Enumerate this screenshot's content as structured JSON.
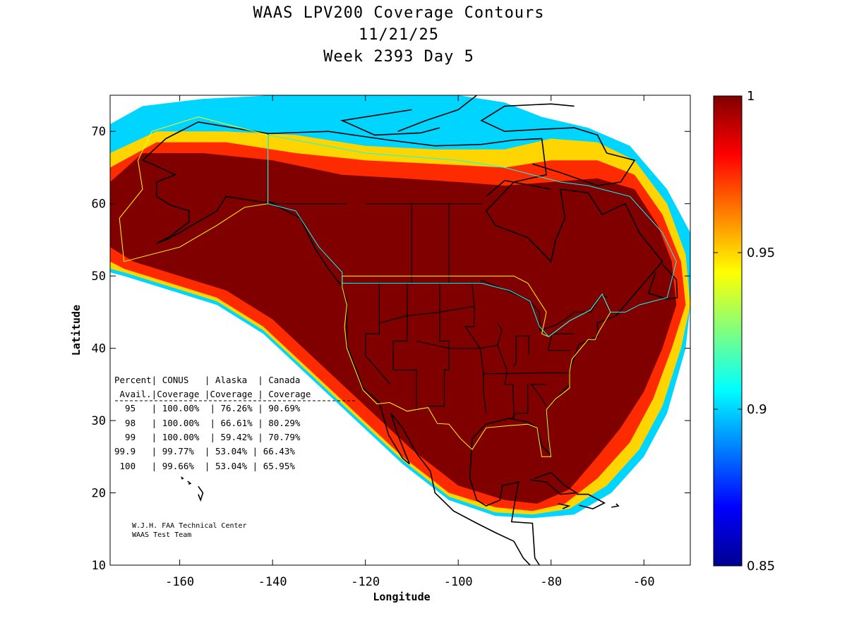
{
  "title": {
    "line1": "WAAS LPV200 Coverage Contours",
    "line2": "11/21/25",
    "line3": "Week 2393 Day 5"
  },
  "axes": {
    "xlabel": "Longitude",
    "ylabel": "Latitude",
    "xlim": [
      -175,
      -50
    ],
    "ylim": [
      10,
      75
    ],
    "x_ticks": [
      -160,
      -140,
      -120,
      -100,
      -80,
      -60
    ],
    "y_ticks": [
      10,
      20,
      30,
      40,
      50,
      60,
      70
    ]
  },
  "colorbar": {
    "min": 0.85,
    "max": 1,
    "ticks": [
      {
        "value": 1,
        "label": "1"
      },
      {
        "value": 0.95,
        "label": "0.95"
      },
      {
        "value": 0.9,
        "label": "0.9"
      },
      {
        "value": 0.85,
        "label": "0.85"
      }
    ],
    "colormap": "jet"
  },
  "table": {
    "header1": "Percent| CONUS   | Alaska  | Canada",
    "header2": " Avail.|Coverage |Coverage | Coverage",
    "rows": [
      "  95   | 100.00%  | 76.26% | 90.69%",
      "  98   | 100.00%  | 66.61% | 80.29%",
      "  99   | 100.00%  | 59.42% | 70.79%",
      "99.9   | 99.77%  | 53.04% | 66.43%",
      " 100   | 99.66%  | 53.04% | 65.95%"
    ]
  },
  "credit": {
    "line1": "W.J.H. FAA Technical Center",
    "line2": "WAAS Test Team"
  },
  "chart_data": {
    "type": "heatmap",
    "title": "WAAS LPV200 Coverage Contours 11/21/25 Week 2393 Day 5",
    "xlabel": "Longitude",
    "ylabel": "Latitude",
    "xlim": [
      -175,
      -50
    ],
    "ylim": [
      10,
      75
    ],
    "value_range": [
      0.85,
      1
    ],
    "legend": "colorbar-right",
    "grid": false,
    "coverage_table": {
      "columns": [
        "Percent Avail.",
        "CONUS Coverage",
        "Alaska Coverage",
        "Canada Coverage"
      ],
      "rows": [
        [
          "95",
          "100.00%",
          "76.26%",
          "90.69%"
        ],
        [
          "98",
          "100.00%",
          "66.61%",
          "80.29%"
        ],
        [
          "99",
          "100.00%",
          "59.42%",
          "70.79%"
        ],
        [
          "99.9",
          "99.77%",
          "53.04%",
          "66.43%"
        ],
        [
          "100",
          "99.66%",
          "53.04%",
          "65.95%"
        ]
      ]
    },
    "contour_bands": [
      {
        "value": 1.0,
        "outline": [
          [
            -175,
            63
          ],
          [
            -168,
            67
          ],
          [
            -155,
            67
          ],
          [
            -140,
            66
          ],
          [
            -125,
            64
          ],
          [
            -112,
            63.5
          ],
          [
            -100,
            63
          ],
          [
            -90,
            62.5
          ],
          [
            -80,
            63
          ],
          [
            -70,
            63.5
          ],
          [
            -62,
            62
          ],
          [
            -57,
            57
          ],
          [
            -54,
            52
          ],
          [
            -53,
            46
          ],
          [
            -56,
            40
          ],
          [
            -60,
            34
          ],
          [
            -65,
            29
          ],
          [
            -70,
            25
          ],
          [
            -76,
            20.5
          ],
          [
            -83,
            18.5
          ],
          [
            -90,
            19
          ],
          [
            -100,
            21
          ],
          [
            -110,
            26
          ],
          [
            -120,
            32
          ],
          [
            -130,
            38
          ],
          [
            -140,
            44
          ],
          [
            -150,
            48
          ],
          [
            -160,
            50
          ],
          [
            -170,
            52
          ],
          [
            -175,
            54
          ]
        ]
      },
      {
        "value": 0.975,
        "outline": [
          [
            -175,
            65
          ],
          [
            -165,
            68.5
          ],
          [
            -150,
            68.5
          ],
          [
            -135,
            67
          ],
          [
            -120,
            66
          ],
          [
            -105,
            65.5
          ],
          [
            -90,
            65
          ],
          [
            -80,
            66
          ],
          [
            -70,
            66
          ],
          [
            -62,
            64
          ],
          [
            -56,
            58.5
          ],
          [
            -52,
            52
          ],
          [
            -51,
            46
          ],
          [
            -54,
            40
          ],
          [
            -58,
            33
          ],
          [
            -63,
            27
          ],
          [
            -70,
            22
          ],
          [
            -77,
            18.5
          ],
          [
            -84,
            17.5
          ],
          [
            -92,
            18
          ],
          [
            -102,
            20
          ],
          [
            -112,
            25
          ],
          [
            -122,
            31
          ],
          [
            -132,
            37
          ],
          [
            -142,
            43
          ],
          [
            -152,
            47
          ],
          [
            -162,
            49
          ],
          [
            -172,
            51
          ],
          [
            -175,
            52
          ]
        ]
      },
      {
        "value": 0.95,
        "outline": [
          [
            -175,
            67
          ],
          [
            -165,
            70
          ],
          [
            -150,
            70
          ],
          [
            -135,
            69.5
          ],
          [
            -120,
            68
          ],
          [
            -105,
            67.5
          ],
          [
            -90,
            67.5
          ],
          [
            -80,
            69
          ],
          [
            -70,
            68.5
          ],
          [
            -62,
            66
          ],
          [
            -55,
            60
          ],
          [
            -51,
            53
          ],
          [
            -50,
            46
          ],
          [
            -52,
            40
          ],
          [
            -56,
            32
          ],
          [
            -61,
            26
          ],
          [
            -68,
            21
          ],
          [
            -76,
            17.8
          ],
          [
            -84,
            17
          ],
          [
            -92,
            17.3
          ],
          [
            -102,
            19.5
          ],
          [
            -112,
            24.5
          ],
          [
            -122,
            30.5
          ],
          [
            -132,
            36.5
          ],
          [
            -142,
            42.5
          ],
          [
            -152,
            46.5
          ],
          [
            -162,
            48.5
          ],
          [
            -172,
            50.5
          ],
          [
            -175,
            51
          ]
        ]
      },
      {
        "value": 0.9,
        "outline": [
          [
            -175,
            71
          ],
          [
            -168,
            73.5
          ],
          [
            -155,
            74.5
          ],
          [
            -140,
            75
          ],
          [
            -120,
            75
          ],
          [
            -100,
            75
          ],
          [
            -90,
            74
          ],
          [
            -82,
            72
          ],
          [
            -72,
            70.5
          ],
          [
            -63,
            68
          ],
          [
            -55,
            62
          ],
          [
            -50,
            56
          ],
          [
            -50,
            46
          ],
          [
            -51,
            40
          ],
          [
            -55,
            31
          ],
          [
            -60,
            25
          ],
          [
            -67,
            20
          ],
          [
            -75,
            17
          ],
          [
            -84,
            16.5
          ],
          [
            -92,
            16.8
          ],
          [
            -102,
            19
          ],
          [
            -112,
            24
          ],
          [
            -122,
            30
          ],
          [
            -132,
            36
          ],
          [
            -142,
            42
          ],
          [
            -152,
            46
          ],
          [
            -162,
            48
          ],
          [
            -172,
            50
          ],
          [
            -175,
            50.5
          ]
        ]
      }
    ]
  }
}
